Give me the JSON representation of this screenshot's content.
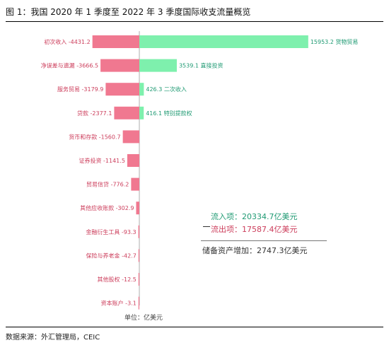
{
  "title": "图 1：我国 2020 年 1 季度至 2022 年 3 季度国际收支流量概览",
  "source": "数据来源：外汇管理局，CEIC",
  "notes": {
    "inflow": "流入项：20334.7亿美元",
    "outflow": "流出项：17587.4亿美元",
    "net": "储备资产增加：2747.3亿美元",
    "unit": "单位：亿美元"
  },
  "colors": {
    "negative": "#f07890",
    "positive": "#7ef0ad",
    "neg_text": "#cc3d5b",
    "pos_text": "#1f9a73"
  },
  "chart_data": {
    "type": "bar",
    "orientation": "horizontal",
    "rows": [
      {
        "neg_label": "初次收入",
        "neg_value": -4431.2,
        "pos_label": "货物贸易",
        "pos_value": 15953.2
      },
      {
        "neg_label": "净误差与遗漏",
        "neg_value": -3666.5,
        "pos_label": "直接投资",
        "pos_value": 3539.1
      },
      {
        "neg_label": "服务贸易",
        "neg_value": -3179.9,
        "pos_label": "二次收入",
        "pos_value": 426.3
      },
      {
        "neg_label": "贷款",
        "neg_value": -2377.1,
        "pos_label": "特别提款权",
        "pos_value": 416.1
      },
      {
        "neg_label": "货币和存款",
        "neg_value": -1560.7
      },
      {
        "neg_label": "证券投资",
        "neg_value": -1141.5
      },
      {
        "neg_label": "贸易信贷",
        "neg_value": -776.2
      },
      {
        "neg_label": "其他应收账款",
        "neg_value": -302.9
      },
      {
        "neg_label": "金融衍生工具",
        "neg_value": -93.3
      },
      {
        "neg_label": "保险与养老金",
        "neg_value": -42.7
      },
      {
        "neg_label": "其他股权",
        "neg_value": -12.5
      },
      {
        "neg_label": "资本账户",
        "neg_value": -3.1
      }
    ]
  }
}
